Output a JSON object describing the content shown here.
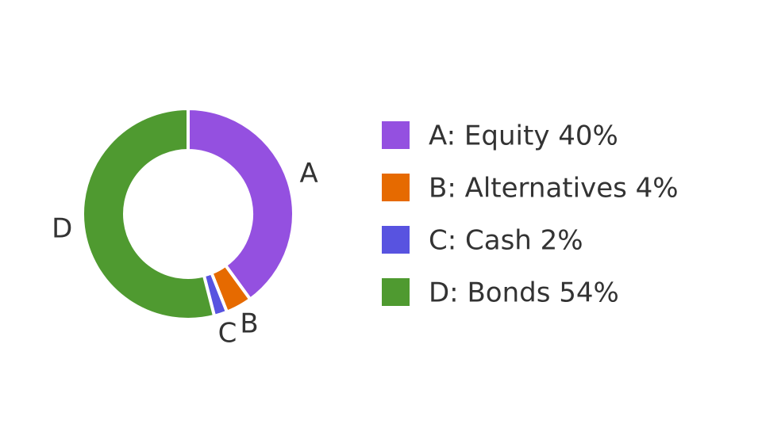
{
  "chart_data": {
    "type": "pie",
    "donut": true,
    "categories": [
      "A",
      "B",
      "C",
      "D"
    ],
    "legend_labels": [
      "A: Equity 40%",
      "B: Alternatives 4%",
      "C: Cash 2%",
      "D: Bonds 54%"
    ],
    "values": [
      40,
      4,
      2,
      54
    ],
    "colors": [
      "#9450e0",
      "#e66a00",
      "#5853e0",
      "#4f9a30"
    ]
  }
}
